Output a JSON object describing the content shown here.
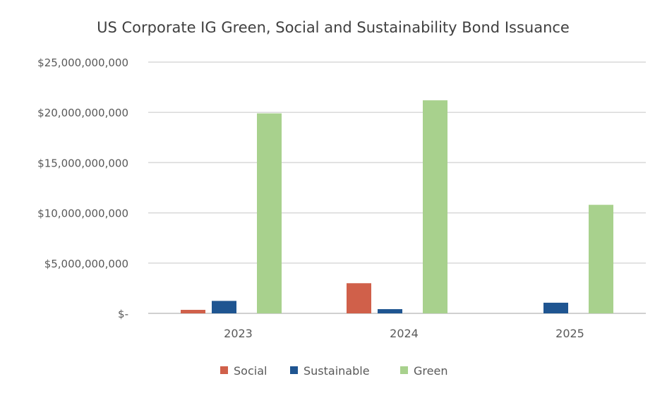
{
  "chart_data": {
    "type": "bar",
    "title": "US Corporate IG Green, Social and Sustainability Bond Issuance",
    "xlabel": "",
    "ylabel": "",
    "categories": [
      "2023",
      "2024",
      "2025"
    ],
    "series": [
      {
        "name": "Social",
        "color": "#D0604A",
        "values": [
          350000000,
          3000000000,
          0
        ]
      },
      {
        "name": "Sustainable",
        "color": "#1F5591",
        "values": [
          1240000000,
          420000000,
          1060000000
        ]
      },
      {
        "name": "Green",
        "color": "#A8D18D",
        "values": [
          19900000000,
          21200000000,
          10800000000
        ]
      }
    ],
    "ylim": [
      0,
      25000000000
    ],
    "yticks": [
      0,
      5000000000,
      10000000000,
      15000000000,
      20000000000,
      25000000000
    ],
    "ytick_labels": [
      "$-",
      "$5,000,000,000",
      "$10,000,000,000",
      "$15,000,000,000",
      "$20,000,000,000",
      "$25,000,000,000"
    ],
    "grid": true,
    "legend_position": "bottom"
  }
}
